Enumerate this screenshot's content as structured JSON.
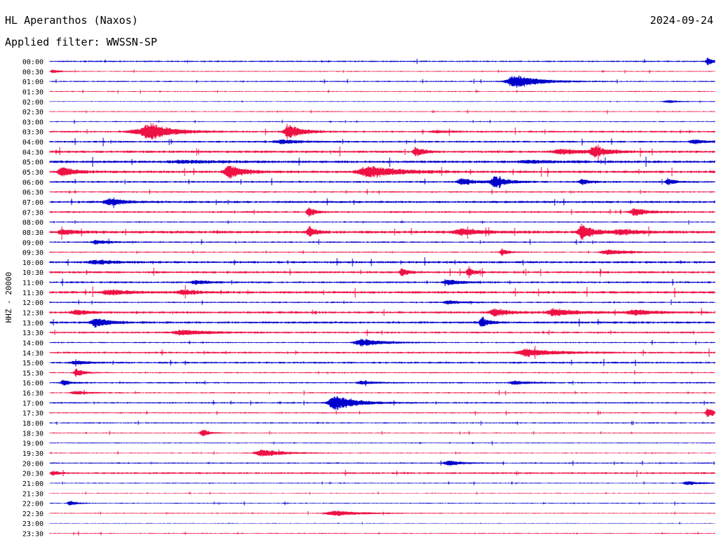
{
  "header": {
    "station_title": "HL Aperanthos (Naxos)",
    "date": "2024-09-24",
    "filter": "Applied filter: WWSSN-SP"
  },
  "channel_label": "HHZ - 20000",
  "colors": {
    "blue": "#0000cc",
    "red": "#ee1144",
    "text": "#000000"
  },
  "chart_data": {
    "type": "helicorder",
    "title": "HL Aperanthos (Naxos)",
    "subtitle": "Applied filter: WWSSN-SP",
    "ylabel": "HHZ - 20000",
    "row_interval_minutes": 30,
    "x_domain": [
      0,
      1
    ],
    "rows": [
      {
        "time": "00:00",
        "color": "blue",
        "noise": 1.2,
        "events": [
          [
            0.99,
            6,
            0.01
          ]
        ]
      },
      {
        "time": "00:30",
        "color": "red",
        "noise": 0.8,
        "events": [
          [
            0.005,
            3,
            0.01
          ]
        ]
      },
      {
        "time": "01:00",
        "color": "blue",
        "noise": 1,
        "events": [
          [
            0.7,
            10,
            0.035
          ]
        ]
      },
      {
        "time": "01:30",
        "color": "red",
        "noise": 0.8,
        "events": []
      },
      {
        "time": "02:00",
        "color": "blue",
        "noise": 0.6,
        "events": [
          [
            0.93,
            2,
            0.02
          ]
        ]
      },
      {
        "time": "02:30",
        "color": "red",
        "noise": 0.8,
        "events": []
      },
      {
        "time": "03:00",
        "color": "blue",
        "noise": 0.8,
        "events": []
      },
      {
        "time": "03:30",
        "color": "red",
        "noise": 1.5,
        "events": [
          [
            0.15,
            12,
            0.03
          ],
          [
            0.36,
            11,
            0.02
          ],
          [
            0.13,
            3,
            0.04
          ],
          [
            0.58,
            2,
            0.02
          ]
        ]
      },
      {
        "time": "04:00",
        "color": "blue",
        "noise": 1.5,
        "events": [
          [
            0.35,
            3,
            0.03
          ],
          [
            0.97,
            3,
            0.02
          ]
        ]
      },
      {
        "time": "04:30",
        "color": "red",
        "noise": 2,
        "events": [
          [
            0.55,
            8,
            0.01
          ],
          [
            0.77,
            4,
            0.03
          ],
          [
            0.82,
            8,
            0.02
          ]
        ]
      },
      {
        "time": "05:00",
        "color": "blue",
        "noise": 2,
        "events": [
          [
            0.2,
            2,
            0.05
          ],
          [
            0.72,
            2,
            0.04
          ]
        ]
      },
      {
        "time": "05:30",
        "color": "red",
        "noise": 2,
        "events": [
          [
            0.02,
            7,
            0.02
          ],
          [
            0.27,
            11,
            0.02
          ],
          [
            0.48,
            10,
            0.04
          ]
        ]
      },
      {
        "time": "06:00",
        "color": "blue",
        "noise": 1.5,
        "events": [
          [
            0.62,
            5,
            0.02
          ],
          [
            0.67,
            8,
            0.02
          ],
          [
            0.8,
            5,
            0.01
          ],
          [
            0.93,
            5,
            0.01
          ]
        ]
      },
      {
        "time": "06:30",
        "color": "red",
        "noise": 1.2,
        "events": []
      },
      {
        "time": "07:00",
        "color": "blue",
        "noise": 1.8,
        "events": [
          [
            0.09,
            6,
            0.02
          ]
        ]
      },
      {
        "time": "07:30",
        "color": "red",
        "noise": 1.5,
        "events": [
          [
            0.39,
            7,
            0.01
          ],
          [
            0.88,
            6,
            0.02
          ]
        ]
      },
      {
        "time": "08:00",
        "color": "blue",
        "noise": 1,
        "events": []
      },
      {
        "time": "08:30",
        "color": "red",
        "noise": 2.2,
        "events": [
          [
            0.02,
            4,
            0.02
          ],
          [
            0.39,
            8,
            0.01
          ],
          [
            0.62,
            5,
            0.03
          ],
          [
            0.8,
            13,
            0.015
          ],
          [
            0.86,
            4,
            0.03
          ]
        ]
      },
      {
        "time": "09:00",
        "color": "blue",
        "noise": 1.2,
        "events": [
          [
            0.07,
            3,
            0.02
          ]
        ]
      },
      {
        "time": "09:30",
        "color": "red",
        "noise": 1,
        "events": [
          [
            0.68,
            5,
            0.01
          ],
          [
            0.84,
            4,
            0.03
          ]
        ]
      },
      {
        "time": "10:00",
        "color": "blue",
        "noise": 1.8,
        "events": [
          [
            0.07,
            3,
            0.03
          ]
        ]
      },
      {
        "time": "10:30",
        "color": "red",
        "noise": 1.8,
        "events": [
          [
            0.53,
            6,
            0.01
          ],
          [
            0.63,
            6,
            0.01
          ]
        ]
      },
      {
        "time": "11:00",
        "color": "blue",
        "noise": 1.5,
        "events": [
          [
            0.22,
            3,
            0.02
          ],
          [
            0.6,
            4,
            0.02
          ]
        ]
      },
      {
        "time": "11:30",
        "color": "red",
        "noise": 2,
        "events": [
          [
            0.09,
            4,
            0.03
          ],
          [
            0.2,
            4,
            0.02
          ]
        ]
      },
      {
        "time": "12:00",
        "color": "blue",
        "noise": 1.2,
        "events": [
          [
            0.6,
            3,
            0.02
          ]
        ]
      },
      {
        "time": "12:30",
        "color": "red",
        "noise": 1.8,
        "events": [
          [
            0.04,
            4,
            0.02
          ],
          [
            0.67,
            6,
            0.02
          ],
          [
            0.76,
            6,
            0.03
          ],
          [
            0.88,
            4,
            0.03
          ]
        ]
      },
      {
        "time": "13:00",
        "color": "blue",
        "noise": 1.8,
        "events": [
          [
            0.07,
            7,
            0.02
          ],
          [
            0.65,
            9,
            0.01
          ]
        ]
      },
      {
        "time": "13:30",
        "color": "red",
        "noise": 1.5,
        "events": [
          [
            0.2,
            4,
            0.04
          ]
        ]
      },
      {
        "time": "14:00",
        "color": "blue",
        "noise": 1,
        "events": [
          [
            0.47,
            6,
            0.03
          ]
        ]
      },
      {
        "time": "14:30",
        "color": "red",
        "noise": 1.5,
        "events": [
          [
            0.72,
            6,
            0.04
          ]
        ]
      },
      {
        "time": "15:00",
        "color": "blue",
        "noise": 1.5,
        "events": [
          [
            0.04,
            3,
            0.02
          ]
        ]
      },
      {
        "time": "15:30",
        "color": "red",
        "noise": 1,
        "events": [
          [
            0.04,
            7,
            0.01
          ]
        ]
      },
      {
        "time": "16:00",
        "color": "blue",
        "noise": 1.2,
        "events": [
          [
            0.02,
            5,
            0.01
          ],
          [
            0.47,
            3,
            0.02
          ],
          [
            0.7,
            3,
            0.02
          ]
        ]
      },
      {
        "time": "16:30",
        "color": "red",
        "noise": 1,
        "events": [
          [
            0.04,
            3,
            0.02
          ]
        ]
      },
      {
        "time": "17:00",
        "color": "blue",
        "noise": 1.2,
        "events": [
          [
            0.43,
            12,
            0.03
          ]
        ]
      },
      {
        "time": "17:30",
        "color": "red",
        "noise": 1,
        "events": [
          [
            0.99,
            8,
            0.01
          ]
        ]
      },
      {
        "time": "18:00",
        "color": "blue",
        "noise": 1,
        "events": []
      },
      {
        "time": "18:30",
        "color": "red",
        "noise": 0.8,
        "events": [
          [
            0.23,
            6,
            0.01
          ]
        ]
      },
      {
        "time": "19:00",
        "color": "blue",
        "noise": 0.8,
        "events": []
      },
      {
        "time": "19:30",
        "color": "red",
        "noise": 0.8,
        "events": [
          [
            0.32,
            6,
            0.03
          ]
        ]
      },
      {
        "time": "20:00",
        "color": "blue",
        "noise": 1,
        "events": [
          [
            0.6,
            4,
            0.02
          ]
        ]
      },
      {
        "time": "20:30",
        "color": "red",
        "noise": 1.5,
        "events": [
          [
            0.005,
            3,
            0.01
          ]
        ]
      },
      {
        "time": "21:00",
        "color": "blue",
        "noise": 0.8,
        "events": [
          [
            0.96,
            3,
            0.02
          ]
        ]
      },
      {
        "time": "21:30",
        "color": "red",
        "noise": 0.6,
        "events": []
      },
      {
        "time": "22:00",
        "color": "blue",
        "noise": 0.8,
        "events": [
          [
            0.03,
            4,
            0.01
          ]
        ]
      },
      {
        "time": "22:30",
        "color": "red",
        "noise": 0.8,
        "events": [
          [
            0.43,
            4,
            0.04
          ]
        ]
      },
      {
        "time": "23:00",
        "color": "blue",
        "noise": 0.5,
        "events": []
      },
      {
        "time": "23:30",
        "color": "red",
        "noise": 0.8,
        "events": []
      }
    ]
  }
}
